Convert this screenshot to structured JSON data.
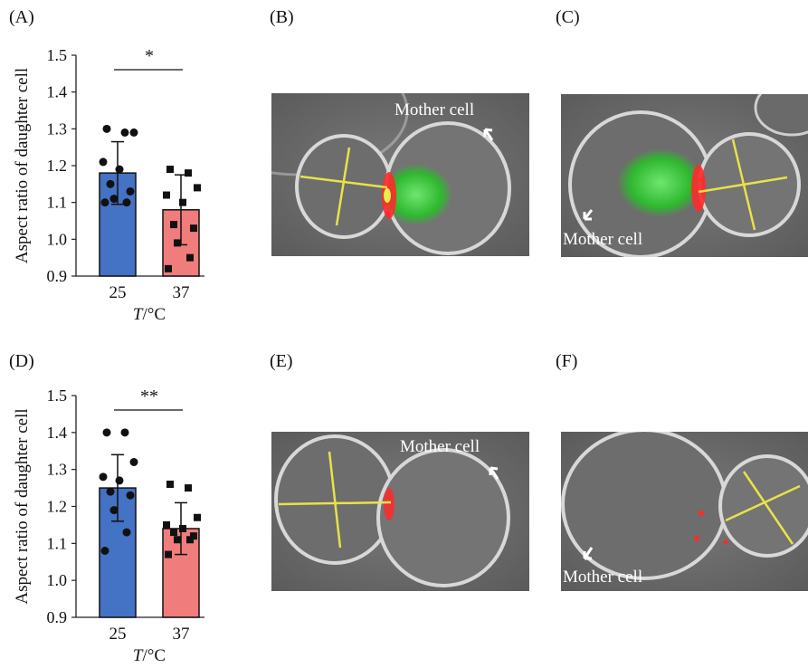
{
  "panels": {
    "A": "(A)",
    "B": "(B)",
    "C": "(C)",
    "D": "(D)",
    "E": "(E)",
    "F": "(F)"
  },
  "micrographs": {
    "mother_label": "Mother cell"
  },
  "colors": {
    "bar_25": "#4472C4",
    "bar_37": "#F07C7C",
    "measure_line": "#E8E24A",
    "gfp": "#3CC43C",
    "mcherry": "#FF2A2A"
  },
  "chart_data": [
    {
      "type": "bar",
      "categories": [
        "25",
        "37"
      ],
      "values": [
        1.18,
        1.08
      ],
      "errors": [
        0.085,
        0.095
      ],
      "points": [
        [
          1.3,
          1.29,
          1.29,
          1.21,
          1.19,
          1.15,
          1.13,
          1.11,
          1.1,
          1.1
        ],
        [
          1.19,
          1.18,
          1.14,
          1.12,
          1.1,
          1.04,
          1.03,
          0.99,
          0.95,
          0.92
        ]
      ],
      "ylabel": "Aspect ratio of daughter cell",
      "xlabel": "T/°C",
      "ylim": [
        0.9,
        1.5
      ],
      "yticks": [
        "0.9",
        "1.0",
        "1.1",
        "1.2",
        "1.3",
        "1.4",
        "1.5"
      ],
      "significance": "*"
    },
    {
      "type": "bar",
      "categories": [
        "25",
        "37"
      ],
      "values": [
        1.25,
        1.14
      ],
      "errors": [
        0.09,
        0.07
      ],
      "points": [
        [
          1.4,
          1.4,
          1.32,
          1.28,
          1.27,
          1.24,
          1.23,
          1.19,
          1.13,
          1.08
        ],
        [
          1.26,
          1.25,
          1.17,
          1.15,
          1.14,
          1.13,
          1.12,
          1.11,
          1.11,
          1.07
        ]
      ],
      "ylabel": "Aspect ratio of daughter cell",
      "xlabel": "T/°C",
      "ylim": [
        0.9,
        1.5
      ],
      "yticks": [
        "0.9",
        "1.0",
        "1.1",
        "1.2",
        "1.3",
        "1.4",
        "1.5"
      ],
      "significance": "**"
    }
  ]
}
